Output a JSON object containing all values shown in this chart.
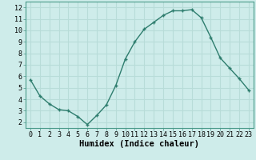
{
  "x": [
    0,
    1,
    2,
    3,
    4,
    5,
    6,
    7,
    8,
    9,
    10,
    11,
    12,
    13,
    14,
    15,
    16,
    17,
    18,
    19,
    20,
    21,
    22,
    23
  ],
  "y": [
    5.7,
    4.3,
    3.6,
    3.1,
    3.0,
    2.5,
    1.8,
    2.6,
    3.5,
    5.2,
    7.5,
    9.0,
    10.1,
    10.7,
    11.3,
    11.7,
    11.7,
    11.8,
    11.1,
    9.4,
    7.6,
    6.7,
    5.8,
    4.8
  ],
  "xlabel": "Humidex (Indice chaleur)",
  "xlim": [
    -0.5,
    23.5
  ],
  "ylim": [
    1.5,
    12.5
  ],
  "yticks": [
    2,
    3,
    4,
    5,
    6,
    7,
    8,
    9,
    10,
    11,
    12
  ],
  "xticks": [
    0,
    1,
    2,
    3,
    4,
    5,
    6,
    7,
    8,
    9,
    10,
    11,
    12,
    13,
    14,
    15,
    16,
    17,
    18,
    19,
    20,
    21,
    22,
    23
  ],
  "line_color": "#2e7d6e",
  "bg_color": "#ceecea",
  "grid_color": "#b8dcd8",
  "tick_label_fontsize": 6.0,
  "xlabel_fontsize": 7.5,
  "marker": "+"
}
